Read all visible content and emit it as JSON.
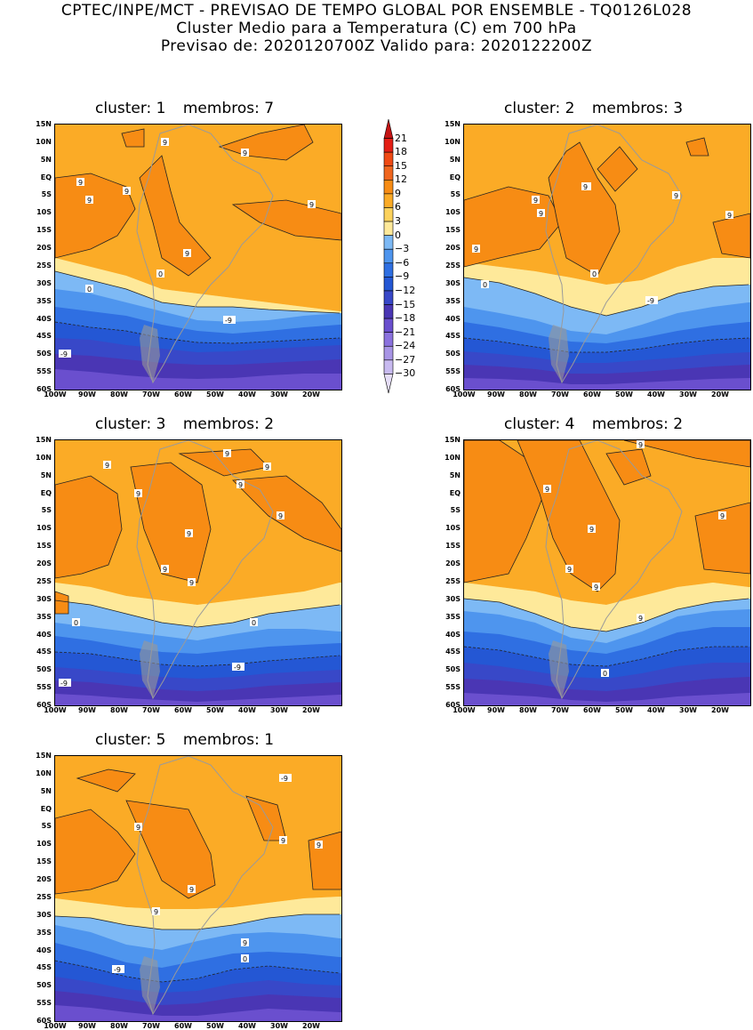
{
  "header": {
    "line1": "CPTEC/INPE/MCT - PREVISAO DE TEMPO GLOBAL POR ENSEMBLE - TQ0126L028",
    "line2": "Cluster Medio para a Temperatura (C) em 700 hPa",
    "line3": "Previsao de: 2020120700Z   Valido para: 2020122200Z"
  },
  "axes": {
    "lat_labels": [
      "15N",
      "10N",
      "5N",
      "EQ",
      "5S",
      "10S",
      "15S",
      "20S",
      "25S",
      "30S",
      "35S",
      "40S",
      "45S",
      "50S",
      "55S",
      "60S"
    ],
    "lon_labels": [
      "100W",
      "90W",
      "80W",
      "70W",
      "60W",
      "50W",
      "40W",
      "30W",
      "20W"
    ]
  },
  "colorbar": {
    "labels": [
      "21",
      "18",
      "15",
      "12",
      "9",
      "6",
      "3",
      "0",
      "-3",
      "-6",
      "-9",
      "-12",
      "-15",
      "-18",
      "-21",
      "-24",
      "-27",
      "-30"
    ],
    "colors": [
      "#c41414",
      "#e41e14",
      "#f04a14",
      "#f0661e",
      "#f78c14",
      "#fbab26",
      "#fcd25c",
      "#fee99a",
      "#7db9f5",
      "#4e95ee",
      "#2f6fe2",
      "#2457d4",
      "#3848c8",
      "#4a36b4",
      "#6a4fce",
      "#8b72de",
      "#a895e6",
      "#c8baf0",
      "#e6def8"
    ]
  },
  "clusters": [
    {
      "name": "cluster: 1",
      "members": "membros: 7",
      "contour_labels": [
        "9",
        "9",
        "9",
        "9",
        "9",
        "9",
        "9",
        "0",
        "0",
        "-9",
        "-9"
      ]
    },
    {
      "name": "cluster: 2",
      "members": "membros: 3",
      "contour_labels": [
        "9",
        "9",
        "9",
        "9",
        "9",
        "9",
        "9",
        "0",
        "0",
        "-9"
      ]
    },
    {
      "name": "cluster: 3",
      "members": "membros: 2",
      "contour_labels": [
        "9",
        "9",
        "9",
        "9",
        "9",
        "9",
        "9",
        "9",
        "9",
        "0",
        "0",
        "-9",
        "-9"
      ]
    },
    {
      "name": "cluster: 4",
      "members": "membros: 2",
      "contour_labels": [
        "9",
        "9",
        "9",
        "9",
        "9",
        "9",
        "9",
        "0",
        "-9"
      ]
    },
    {
      "name": "cluster: 5",
      "members": "membros: 1",
      "contour_labels": [
        "9",
        "9",
        "9",
        "9",
        "9",
        "9",
        "0",
        "-9",
        "-9"
      ]
    }
  ]
}
